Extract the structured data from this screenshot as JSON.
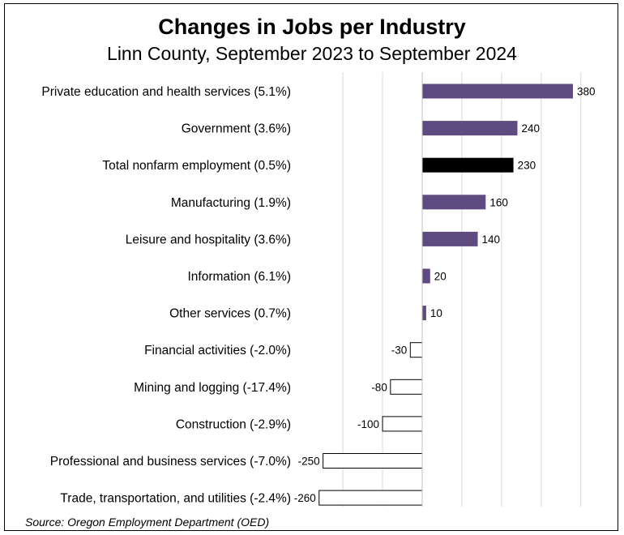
{
  "chart_data": {
    "type": "bar",
    "orientation": "horizontal",
    "title": "Changes in Jobs per Industry",
    "subtitle": "Linn County, September 2023 to September 2024",
    "source": "Source: Oregon Employment Department (OED)",
    "categories": [
      "Private education and health services (5.1%)",
      "Government (3.6%)",
      "Total nonfarm employment (0.5%)",
      "Manufacturing (1.9%)",
      "Leisure and hospitality (3.6%)",
      "Information (6.1%)",
      "Other services (0.7%)",
      "Financial activities (-2.0%)",
      "Mining and logging (-17.4%)",
      "Construction (-2.9%)",
      "Professional and business services (-7.0%)",
      "Trade, transportation, and utilities (-2.4%)"
    ],
    "values": [
      380,
      240,
      230,
      160,
      140,
      20,
      10,
      -30,
      -80,
      -100,
      -250,
      -260
    ],
    "xlim": [
      -260,
      400
    ],
    "grid": true,
    "legend": "none",
    "colors": {
      "positive": "#5f4b80",
      "total": "#000000",
      "negative_fill": "#ffffff",
      "negative_stroke": "#000000",
      "grid": "#d9d9d9"
    }
  }
}
